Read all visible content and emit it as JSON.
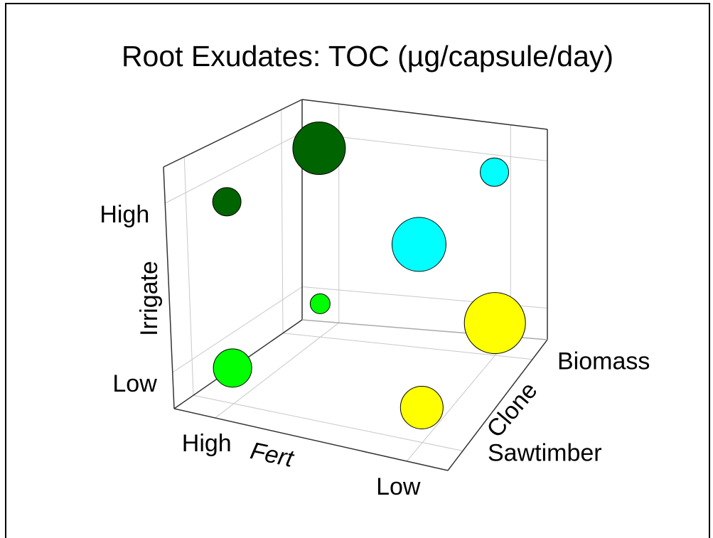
{
  "chart_data": {
    "type": "bubble3d",
    "title": "Root Exudates: TOC (µg/capsule/day)",
    "x_label": "Fert",
    "y_label": "Clone",
    "z_label": "Irrigate",
    "x_categories": [
      "High",
      "Low"
    ],
    "y_categories": [
      "Sawtimber",
      "Biomass"
    ],
    "z_categories": [
      "Low",
      "High"
    ],
    "grid": true,
    "points": [
      {
        "x": 0,
        "y": 1,
        "z": 1,
        "size": 37,
        "color": "#006400"
      },
      {
        "x": 1,
        "y": 1,
        "z": 1,
        "size": 20,
        "color": "#00ffff"
      },
      {
        "x": 0,
        "y": 1,
        "z": 0,
        "size": 14,
        "color": "#00ff00"
      },
      {
        "x": 1,
        "y": 1,
        "z": 0,
        "size": 43,
        "color": "#ffff00"
      },
      {
        "x": 0,
        "y": 0,
        "z": 1,
        "size": 20,
        "color": "#006400"
      },
      {
        "x": 1,
        "y": 0,
        "z": 1,
        "size": 38,
        "color": "#00ffff"
      },
      {
        "x": 0,
        "y": 0,
        "z": 0,
        "size": 27,
        "color": "#00ff00"
      },
      {
        "x": 1,
        "y": 0,
        "z": 0,
        "size": 30,
        "color": "#ffff00"
      }
    ]
  }
}
